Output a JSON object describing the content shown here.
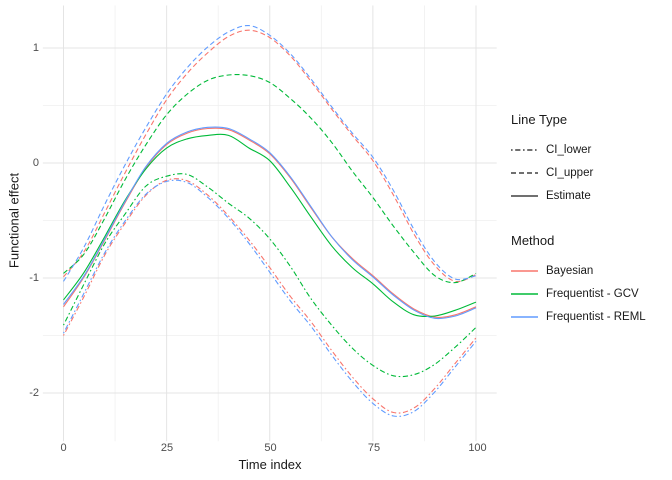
{
  "figure": {
    "x_axis": {
      "label": "Time index",
      "ticks": [
        "0",
        "25",
        "50",
        "75",
        "100"
      ]
    },
    "y_axis": {
      "label": "Functional effect",
      "ticks": [
        "1",
        "0",
        "-1",
        "-2"
      ]
    },
    "legend": {
      "linetype_title": "Line Type",
      "linetype_items": [
        {
          "label": "CI_lower",
          "dash": "dotdash"
        },
        {
          "label": "CI_upper",
          "dash": "dashed"
        },
        {
          "label": "Estimate",
          "dash": "solid"
        }
      ],
      "method_title": "Method",
      "method_items": [
        {
          "label": "Bayesian",
          "color": "#F8766D"
        },
        {
          "label": "Frequentist - GCV",
          "color": "#00BA38"
        },
        {
          "label": "Frequentist - REML",
          "color": "#619CFF"
        }
      ]
    },
    "colors": {
      "grid_major": "#e4e4e4",
      "grid_minor": "#efefef",
      "tick_text": "#4d4d4d",
      "axis_text": "#1a1a1a"
    }
  },
  "chart_data": {
    "type": "line",
    "title": "",
    "xlabel": "Time index",
    "ylabel": "Functional effect",
    "xlim": [
      -5,
      105
    ],
    "ylim": [
      -2.42,
      1.37
    ],
    "x_breaks": [
      0,
      25,
      50,
      75,
      100
    ],
    "y_breaks": [
      1,
      0,
      -1,
      -2
    ],
    "x_minor_breaks": [
      12.5,
      37.5,
      62.5,
      87.5
    ],
    "y_minor_breaks": [
      0.5,
      -0.5,
      -1.5
    ],
    "grid": true,
    "legend_position": "right",
    "x": [
      0,
      5,
      10,
      15,
      20,
      25,
      30,
      35,
      40,
      45,
      50,
      55,
      60,
      65,
      70,
      75,
      80,
      85,
      90,
      95,
      100
    ],
    "series": [
      {
        "name": "Bayesian CI_lower",
        "method": "Bayesian",
        "line_type": "CI_lower",
        "color": "#F8766D",
        "values": [
          -1.5,
          -1.16,
          -0.8,
          -0.52,
          -0.28,
          -0.15,
          -0.155,
          -0.28,
          -0.46,
          -0.67,
          -0.91,
          -1.16,
          -1.38,
          -1.63,
          -1.86,
          -2.05,
          -2.17,
          -2.13,
          -1.96,
          -1.74,
          -1.52
        ]
      },
      {
        "name": "Bayesian CI_upper",
        "method": "Bayesian",
        "line_type": "CI_upper",
        "color": "#F8766D",
        "values": [
          -0.99,
          -0.77,
          -0.43,
          -0.08,
          0.25,
          0.55,
          0.78,
          0.96,
          1.1,
          1.155,
          1.09,
          0.93,
          0.71,
          0.47,
          0.24,
          0.02,
          -0.28,
          -0.62,
          -0.89,
          -1.03,
          -0.97
        ]
      },
      {
        "name": "Bayesian Estimate",
        "method": "Bayesian",
        "line_type": "Estimate",
        "color": "#F8766D",
        "values": [
          -1.25,
          -0.99,
          -0.67,
          -0.34,
          -0.04,
          0.16,
          0.26,
          0.3,
          0.29,
          0.2,
          0.08,
          -0.13,
          -0.39,
          -0.64,
          -0.83,
          -0.98,
          -1.14,
          -1.27,
          -1.34,
          -1.32,
          -1.25
        ]
      },
      {
        "name": "Frequentist - GCV CI_lower",
        "method": "Frequentist - GCV",
        "line_type": "CI_lower",
        "color": "#00BA38",
        "values": [
          -1.41,
          -1.05,
          -0.7,
          -0.44,
          -0.2,
          -0.115,
          -0.1,
          -0.21,
          -0.35,
          -0.48,
          -0.66,
          -0.9,
          -1.18,
          -1.41,
          -1.61,
          -1.76,
          -1.85,
          -1.84,
          -1.75,
          -1.6,
          -1.43
        ]
      },
      {
        "name": "Frequentist - GCV CI_upper",
        "method": "Frequentist - GCV",
        "line_type": "CI_upper",
        "color": "#00BA38",
        "values": [
          -0.96,
          -0.79,
          -0.48,
          -0.14,
          0.16,
          0.42,
          0.6,
          0.72,
          0.765,
          0.76,
          0.7,
          0.56,
          0.39,
          0.18,
          -0.07,
          -0.3,
          -0.55,
          -0.78,
          -0.98,
          -1.04,
          -0.96
        ]
      },
      {
        "name": "Frequentist - GCV Estimate",
        "method": "Frequentist - GCV",
        "line_type": "Estimate",
        "color": "#00BA38",
        "values": [
          -1.19,
          -0.95,
          -0.64,
          -0.32,
          -0.05,
          0.13,
          0.21,
          0.24,
          0.24,
          0.13,
          0.02,
          -0.21,
          -0.47,
          -0.72,
          -0.91,
          -1.05,
          -1.21,
          -1.32,
          -1.33,
          -1.28,
          -1.21
        ]
      },
      {
        "name": "Frequentist - REML CI_lower",
        "method": "Frequentist - REML",
        "line_type": "CI_lower",
        "color": "#619CFF",
        "values": [
          -1.48,
          -1.13,
          -0.78,
          -0.5,
          -0.27,
          -0.16,
          -0.17,
          -0.3,
          -0.48,
          -0.7,
          -0.95,
          -1.2,
          -1.42,
          -1.67,
          -1.9,
          -2.09,
          -2.2,
          -2.16,
          -1.99,
          -1.77,
          -1.55
        ]
      },
      {
        "name": "Frequentist - REML CI_upper",
        "method": "Frequentist - REML",
        "line_type": "CI_upper",
        "color": "#619CFF",
        "values": [
          -1.03,
          -0.73,
          -0.36,
          -0.01,
          0.31,
          0.6,
          0.83,
          1.01,
          1.14,
          1.195,
          1.11,
          0.95,
          0.73,
          0.49,
          0.26,
          0.05,
          -0.24,
          -0.58,
          -0.86,
          -1.01,
          -0.98
        ]
      },
      {
        "name": "Frequentist - REML Estimate",
        "method": "Frequentist - REML",
        "line_type": "Estimate",
        "color": "#619CFF",
        "values": [
          -1.23,
          -0.98,
          -0.66,
          -0.33,
          -0.03,
          0.17,
          0.27,
          0.31,
          0.3,
          0.21,
          0.09,
          -0.12,
          -0.38,
          -0.64,
          -0.84,
          -0.99,
          -1.15,
          -1.28,
          -1.35,
          -1.33,
          -1.26
        ]
      }
    ]
  }
}
